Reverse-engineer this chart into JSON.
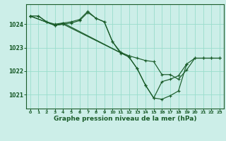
{
  "bg_color": "#cceee8",
  "grid_color": "#99ddcc",
  "line_color": "#1a5c2a",
  "xlabel": "Graphe pression niveau de la mer (hPa)",
  "xlabel_fontsize": 6.5,
  "ylim": [
    1020.4,
    1024.85
  ],
  "xlim": [
    -0.5,
    23.5
  ],
  "yticks": [
    1021,
    1022,
    1023,
    1024
  ],
  "xticks": [
    0,
    1,
    2,
    3,
    4,
    5,
    6,
    7,
    8,
    9,
    10,
    11,
    12,
    13,
    14,
    15,
    16,
    17,
    18,
    19,
    20,
    21,
    22,
    23
  ],
  "series": [
    {
      "x": [
        0,
        1,
        2,
        3,
        4,
        5,
        6,
        7,
        8,
        9,
        10,
        11,
        12,
        13,
        14,
        15,
        16,
        17,
        18,
        19,
        20,
        21,
        22,
        23
      ],
      "y": [
        1024.35,
        1024.35,
        1024.1,
        1023.95,
        1024.0,
        1024.05,
        1024.15,
        1024.5,
        1024.25,
        1024.1,
        1023.25,
        1022.8,
        1022.65,
        1022.55,
        1022.45,
        1022.4,
        1021.85,
        1021.85,
        1021.65,
        1022.05,
        1022.55,
        1022.55,
        1022.55,
        1022.55
      ]
    },
    {
      "x": [
        0,
        1,
        2,
        3,
        4,
        5,
        6,
        7,
        8,
        9,
        10,
        11
      ],
      "y": [
        1024.35,
        1024.35,
        1024.1,
        1024.0,
        1024.05,
        1024.1,
        1024.2,
        1024.55,
        1024.25,
        1024.1,
        1023.25,
        1022.75
      ]
    },
    {
      "x": [
        0,
        3,
        4,
        12,
        13,
        14,
        15,
        16,
        17,
        18,
        19
      ],
      "y": [
        1024.35,
        1023.95,
        1024.0,
        1022.6,
        1022.1,
        1021.4,
        1020.85,
        1020.8,
        1020.95,
        1021.15,
        1022.3
      ]
    },
    {
      "x": [
        0,
        3,
        4,
        12,
        13,
        14,
        15,
        16,
        17,
        18,
        19,
        20,
        21,
        22,
        23
      ],
      "y": [
        1024.35,
        1023.95,
        1024.05,
        1022.6,
        1022.1,
        1021.4,
        1020.85,
        1021.55,
        1021.65,
        1021.8,
        1022.3,
        1022.55,
        1022.55,
        1022.55,
        1022.55
      ]
    }
  ]
}
